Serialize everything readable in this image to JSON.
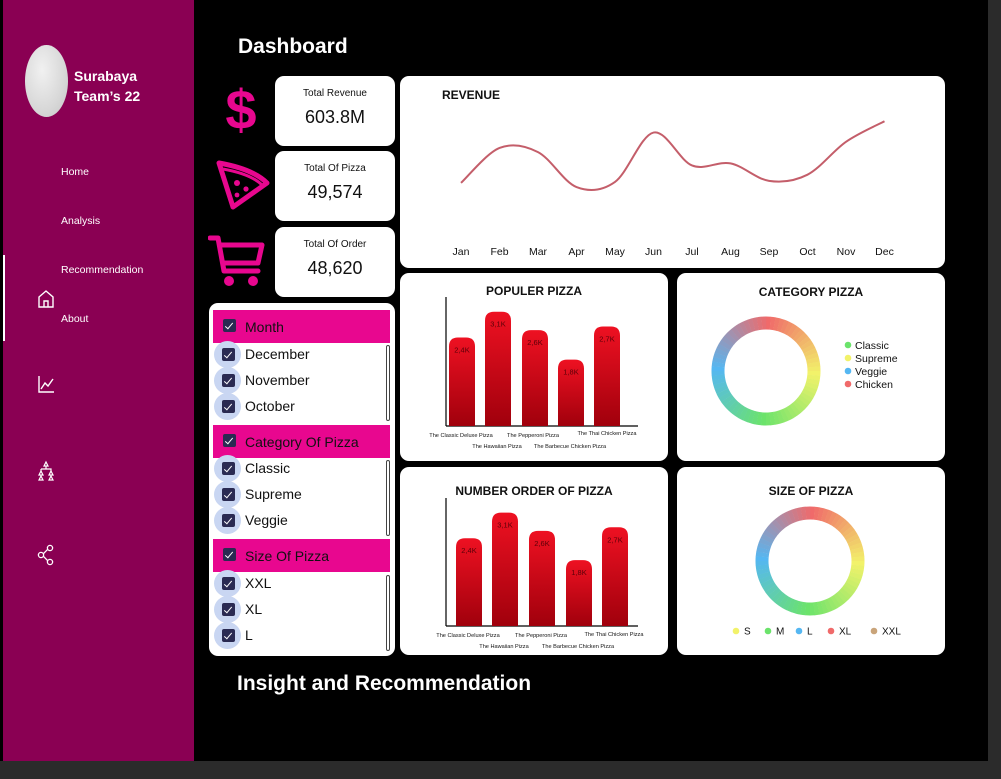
{
  "sidebar": {
    "team_line1": "Surabaya",
    "team_line2": "Team’s 22",
    "nav": [
      {
        "label": "Home",
        "icon": "home-icon"
      },
      {
        "label": "Analysis",
        "icon": "chart-line-icon"
      },
      {
        "label": "Recommendation",
        "icon": "hierarchy-icon"
      },
      {
        "label": "About",
        "icon": "share-icon"
      }
    ]
  },
  "page": {
    "title": "Dashboard",
    "section_title": "Insight and Recommendation"
  },
  "kpis": [
    {
      "label": "Total Revenue",
      "value": "603.8M",
      "icon": "dollar-icon"
    },
    {
      "label": "Total Of Pizza",
      "value": "49,574",
      "icon": "pizza-slice-icon"
    },
    {
      "label": "Total Of Order",
      "value": "48,620",
      "icon": "shopping-cart-icon"
    }
  ],
  "filters": {
    "month": {
      "label": "Month",
      "items": [
        "December",
        "November",
        "October"
      ]
    },
    "category": {
      "label": "Category Of Pizza",
      "items": [
        "Classic",
        "Supreme",
        "Veggie"
      ]
    },
    "size": {
      "label": "Size Of Pizza",
      "items": [
        "XXL",
        "XL",
        "L"
      ]
    }
  },
  "colors": {
    "accent": "#e8078f",
    "sidebar": "#8a0053",
    "bar": "#cc0011",
    "line": "#c45e6a"
  },
  "chart_data": [
    {
      "type": "line",
      "title": "REVENUE",
      "categories": [
        "Jan",
        "Feb",
        "Mar",
        "Apr",
        "May",
        "Jun",
        "Jul",
        "Aug",
        "Sep",
        "Oct",
        "Nov",
        "Dec"
      ],
      "values": [
        40,
        74,
        70,
        36,
        41,
        89,
        57,
        59,
        42,
        48,
        80,
        100
      ],
      "ylim": [
        0,
        110
      ]
    },
    {
      "type": "bar",
      "title": "POPULER PIZZA",
      "categories": [
        "The Classic Deluxe Pizza",
        "The Hawaiian Pizza",
        "The Pepperoni Pizza",
        "The Barbecue Chicken Pizza",
        "The Thai Chicken Pizza"
      ],
      "values": [
        2.4,
        3.1,
        2.6,
        1.8,
        2.7
      ],
      "labels": [
        "2,4K",
        "3,1K",
        "2,6K",
        "1,8K",
        "2,7K"
      ],
      "ylim": [
        0,
        3.5
      ]
    },
    {
      "type": "bar",
      "title": "NUMBER ORDER OF PIZZA",
      "categories": [
        "The Classic Deluxe Pizza",
        "The Hawaiian Pizza",
        "The Pepperoni Pizza",
        "The Barbecue Chicken Pizza",
        "The Thai Chicken Pizza"
      ],
      "values": [
        2.4,
        3.1,
        2.6,
        1.8,
        2.7
      ],
      "labels": [
        "2,4K",
        "3,1K",
        "2,6K",
        "1,8K",
        "2,7K"
      ],
      "ylim": [
        0,
        3.5
      ]
    },
    {
      "type": "pie",
      "title": "CATEGORY PIZZA",
      "legend": [
        {
          "label": "Classic",
          "color": "#6be36b"
        },
        {
          "label": "Supreme",
          "color": "#f2f26a"
        },
        {
          "label": "Veggie",
          "color": "#55b7f2"
        },
        {
          "label": "Chicken",
          "color": "#f06a6a"
        }
      ],
      "legend_position": "right"
    },
    {
      "type": "pie",
      "title": "SIZE OF PIZZA",
      "legend": [
        {
          "label": "S",
          "color": "#f2f26a"
        },
        {
          "label": "M",
          "color": "#6be36b"
        },
        {
          "label": "L",
          "color": "#55b7f2"
        },
        {
          "label": "XL",
          "color": "#f06a6a"
        },
        {
          "label": "XXL",
          "color": "#c9a47a"
        }
      ],
      "legend_position": "bottom"
    }
  ]
}
